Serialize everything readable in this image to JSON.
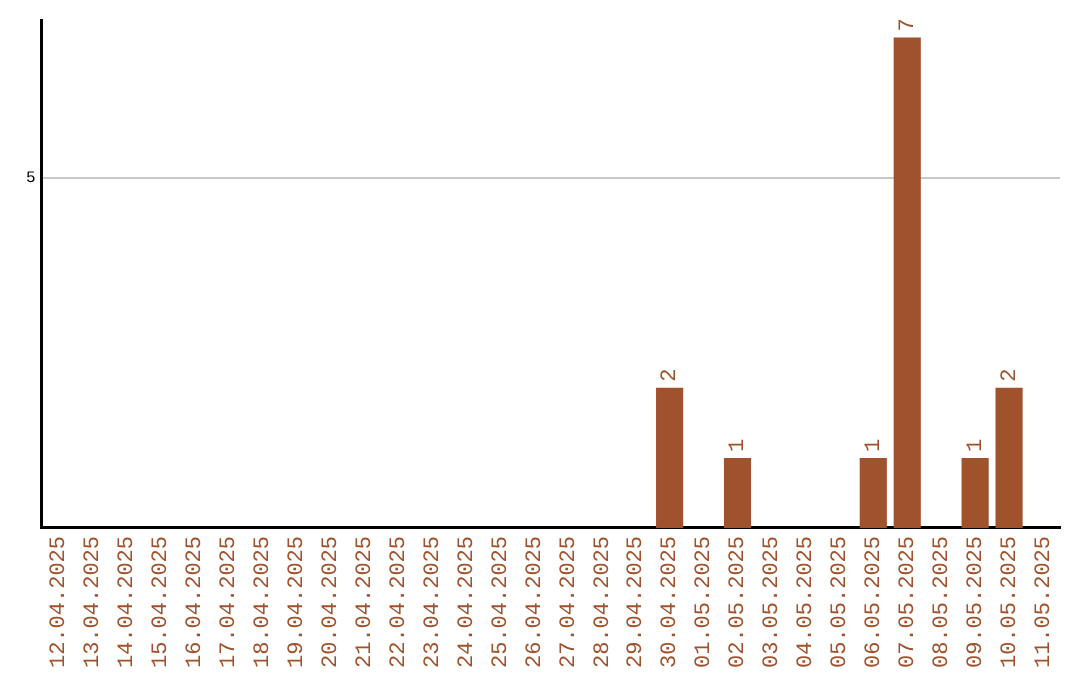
{
  "chart_data": {
    "type": "bar",
    "categories": [
      "12.04.2025",
      "13.04.2025",
      "14.04.2025",
      "15.04.2025",
      "16.04.2025",
      "17.04.2025",
      "18.04.2025",
      "19.04.2025",
      "20.04.2025",
      "21.04.2025",
      "22.04.2025",
      "23.04.2025",
      "24.04.2025",
      "25.04.2025",
      "26.04.2025",
      "27.04.2025",
      "28.04.2025",
      "29.04.2025",
      "30.04.2025",
      "01.05.2025",
      "02.05.2025",
      "03.05.2025",
      "04.05.2025",
      "05.05.2025",
      "06.05.2025",
      "07.05.2025",
      "08.05.2025",
      "09.05.2025",
      "10.05.2025",
      "11.05.2025"
    ],
    "values": [
      null,
      null,
      null,
      null,
      null,
      null,
      null,
      null,
      null,
      null,
      null,
      null,
      null,
      null,
      null,
      null,
      null,
      null,
      2,
      null,
      1,
      null,
      null,
      null,
      1,
      7,
      null,
      1,
      2,
      null
    ],
    "data_labels": true,
    "color": "#a0522d",
    "ylim": [
      0,
      7.25
    ],
    "yticks": [
      5
    ],
    "grid": "y",
    "legend": false
  }
}
